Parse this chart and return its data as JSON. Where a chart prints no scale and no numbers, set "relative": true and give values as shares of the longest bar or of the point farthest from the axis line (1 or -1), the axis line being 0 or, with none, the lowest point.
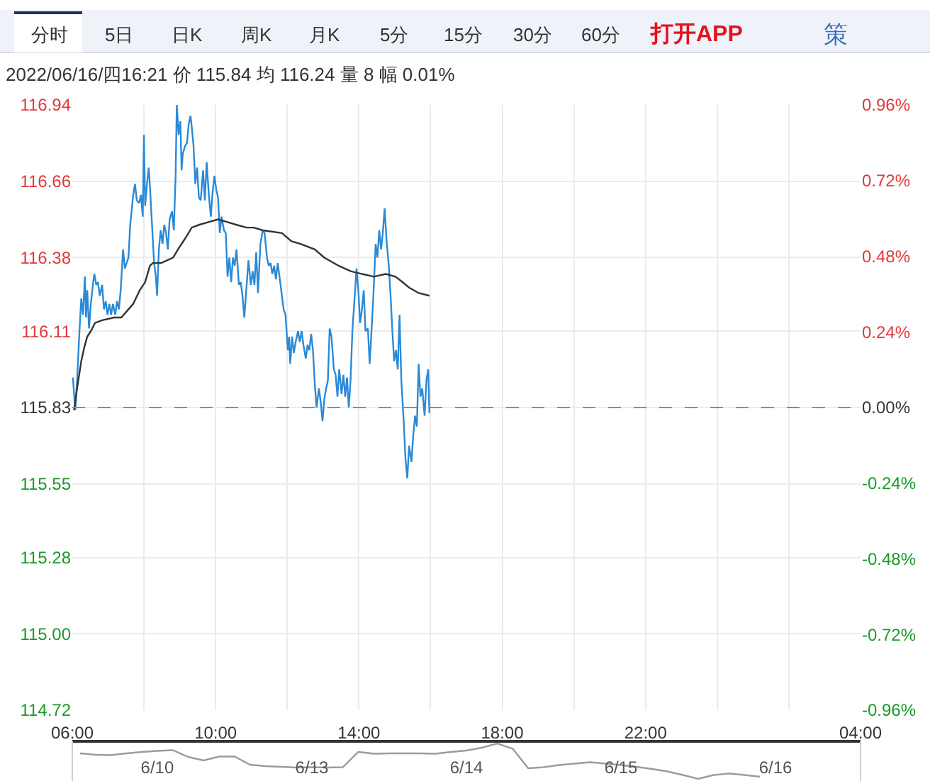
{
  "chart_data": [
    {
      "type": "other",
      "annotations": [
        "分时",
        "5日",
        "日K",
        "周K",
        "月K",
        "5分",
        "15分",
        "30分",
        "60分",
        "打开APP",
        "策"
      ]
    },
    {
      "type": "line",
      "title": "2022/06/16/四16:21 价 115.84 均 116.24 量 8 幅 0.01%",
      "xlim": [
        "2022-06-16T06:00",
        "2022-06-17T04:00"
      ],
      "xticks": [
        {
          "value": "2022-06-16T06:00",
          "label": "06:00"
        },
        {
          "value": "2022-06-16T08:00",
          "label": null
        },
        {
          "value": "2022-06-16T10:00",
          "label": "10:00"
        },
        {
          "value": "2022-06-16T12:00",
          "label": null
        },
        {
          "value": "2022-06-16T14:00",
          "label": "14:00"
        },
        {
          "value": "2022-06-16T16:00",
          "label": null
        },
        {
          "value": "2022-06-16T18:00",
          "label": "18:00"
        },
        {
          "value": "2022-06-16T20:00",
          "label": null
        },
        {
          "value": "2022-06-16T22:00",
          "label": "22:00"
        },
        {
          "value": "2022-06-17T00:00",
          "label": null
        },
        {
          "value": "2022-06-17T02:00",
          "label": null
        },
        {
          "value": "2022-06-17T04:00",
          "label": "04:00"
        }
      ],
      "ylim": [
        114.72,
        116.94
      ],
      "yticks": [
        116.94,
        116.66,
        116.38,
        116.11,
        115.83,
        115.55,
        115.28,
        {
          "value": 115,
          "label": "115.00"
        },
        114.72
      ],
      "y2lim": [
        -0.96,
        0.96
      ],
      "y2ticks": [
        {
          "value": 0.96,
          "label": "0.96%"
        },
        {
          "value": 0.72,
          "label": "0.72%"
        },
        {
          "value": 0.48,
          "label": "0.48%"
        },
        {
          "value": 0.24,
          "label": "0.24%"
        },
        {
          "value": 0,
          "label": "0.00%"
        },
        {
          "value": -0.24,
          "label": "-0.24%"
        },
        {
          "value": -0.48,
          "label": "-0.48%"
        },
        {
          "value": -0.72,
          "label": "-0.72%"
        },
        {
          "value": -0.96,
          "label": "-0.96%"
        }
      ],
      "grid": true,
      "ref_lines": [
        {
          "axis": "y",
          "value": 115.83,
          "color": "#8c8c8c",
          "line_style": "dashed"
        }
      ],
      "series": [
        {
          "color": "#2b8ad8",
          "x": [
            "2022-06-16T06:01",
            "2022-06-16T06:05",
            "2022-06-16T06:08",
            "2022-06-16T06:12",
            "2022-06-16T06:15",
            "2022-06-16T06:18",
            "2022-06-16T06:21",
            "2022-06-16T06:23",
            "2022-06-16T06:25",
            "2022-06-16T06:28",
            "2022-06-16T06:31",
            "2022-06-16T06:35",
            "2022-06-16T06:37",
            "2022-06-16T06:40",
            "2022-06-16T06:43",
            "2022-06-16T06:46",
            "2022-06-16T06:50",
            "2022-06-16T06:53",
            "2022-06-16T06:56",
            "2022-06-16T06:59",
            "2022-06-16T07:02",
            "2022-06-16T07:05",
            "2022-06-16T07:08",
            "2022-06-16T07:12",
            "2022-06-16T07:15",
            "2022-06-16T07:18",
            "2022-06-16T07:21",
            "2022-06-16T07:25",
            "2022-06-16T07:28",
            "2022-06-16T07:31",
            "2022-06-16T07:34",
            "2022-06-16T07:37",
            "2022-06-16T07:42",
            "2022-06-16T07:45",
            "2022-06-16T07:48",
            "2022-06-16T07:52",
            "2022-06-16T07:55",
            "2022-06-16T07:58",
            "2022-06-16T08:00",
            "2022-06-16T08:02",
            "2022-06-16T08:05",
            "2022-06-16T08:08",
            "2022-06-16T08:10",
            "2022-06-16T08:13",
            "2022-06-16T08:17",
            "2022-06-16T08:20",
            "2022-06-16T08:22",
            "2022-06-16T08:25",
            "2022-06-16T08:28",
            "2022-06-16T08:31",
            "2022-06-16T08:34",
            "2022-06-16T08:37",
            "2022-06-16T08:40",
            "2022-06-16T08:43",
            "2022-06-16T08:47",
            "2022-06-16T08:50",
            "2022-06-16T08:53",
            "2022-06-16T08:55",
            "2022-06-16T08:58",
            "2022-06-16T09:01",
            "2022-06-16T09:03",
            "2022-06-16T09:05",
            "2022-06-16T09:09",
            "2022-06-16T09:12",
            "2022-06-16T09:15",
            "2022-06-16T09:18",
            "2022-06-16T09:20",
            "2022-06-16T09:23",
            "2022-06-16T09:26",
            "2022-06-16T09:29",
            "2022-06-16T09:32",
            "2022-06-16T09:35",
            "2022-06-16T09:39",
            "2022-06-16T09:42",
            "2022-06-16T09:45",
            "2022-06-16T09:49",
            "2022-06-16T09:52",
            "2022-06-16T09:55",
            "2022-06-16T09:58",
            "2022-06-16T10:01",
            "2022-06-16T10:04",
            "2022-06-16T10:07",
            "2022-06-16T10:10",
            "2022-06-16T10:14",
            "2022-06-16T10:17",
            "2022-06-16T10:20",
            "2022-06-16T10:23",
            "2022-06-16T10:26",
            "2022-06-16T10:29",
            "2022-06-16T10:32",
            "2022-06-16T10:35",
            "2022-06-16T10:39",
            "2022-06-16T10:42",
            "2022-06-16T10:45",
            "2022-06-16T10:48",
            "2022-06-16T10:52",
            "2022-06-16T10:55",
            "2022-06-16T10:59",
            "2022-06-16T11:02",
            "2022-06-16T11:05",
            "2022-06-16T11:08",
            "2022-06-16T11:11",
            "2022-06-16T11:15",
            "2022-06-16T11:19",
            "2022-06-16T11:22",
            "2022-06-16T11:26",
            "2022-06-16T11:29",
            "2022-06-16T11:32",
            "2022-06-16T11:35",
            "2022-06-16T11:38",
            "2022-06-16T11:41",
            "2022-06-16T11:44",
            "2022-06-16T11:47",
            "2022-06-16T11:51",
            "2022-06-16T11:54",
            "2022-06-16T11:57",
            "2022-06-16T12:01",
            "2022-06-16T12:03",
            "2022-06-16T12:05",
            "2022-06-16T12:08",
            "2022-06-16T12:11",
            "2022-06-16T12:14",
            "2022-06-16T12:18",
            "2022-06-16T12:21",
            "2022-06-16T12:24",
            "2022-06-16T12:27",
            "2022-06-16T12:31",
            "2022-06-16T12:34",
            "2022-06-16T12:37",
            "2022-06-16T12:40",
            "2022-06-16T12:43",
            "2022-06-16T12:46",
            "2022-06-16T12:49",
            "2022-06-16T12:53",
            "2022-06-16T12:56",
            "2022-06-16T12:59",
            "2022-06-16T13:02",
            "2022-06-16T13:05",
            "2022-06-16T13:08",
            "2022-06-16T13:11",
            "2022-06-16T13:14",
            "2022-06-16T13:18",
            "2022-06-16T13:21",
            "2022-06-16T13:24",
            "2022-06-16T13:27",
            "2022-06-16T13:31",
            "2022-06-16T13:34",
            "2022-06-16T13:37",
            "2022-06-16T13:40",
            "2022-06-16T13:43",
            "2022-06-16T13:46",
            "2022-06-16T13:49",
            "2022-06-16T13:53",
            "2022-06-16T13:56",
            "2022-06-16T13:59",
            "2022-06-16T14:02",
            "2022-06-16T14:05",
            "2022-06-16T14:08",
            "2022-06-16T14:11",
            "2022-06-16T14:15",
            "2022-06-16T14:18",
            "2022-06-16T14:21",
            "2022-06-16T14:24",
            "2022-06-16T14:28",
            "2022-06-16T14:31",
            "2022-06-16T14:34",
            "2022-06-16T14:37",
            "2022-06-16T14:40",
            "2022-06-16T14:43",
            "2022-06-16T14:46",
            "2022-06-16T14:50",
            "2022-06-16T14:53",
            "2022-06-16T14:56",
            "2022-06-16T14:59",
            "2022-06-16T15:02",
            "2022-06-16T15:05",
            "2022-06-16T15:08",
            "2022-06-16T15:11",
            "2022-06-16T15:15",
            "2022-06-16T15:18",
            "2022-06-16T15:21",
            "2022-06-16T15:24",
            "2022-06-16T15:28",
            "2022-06-16T15:31",
            "2022-06-16T15:34",
            "2022-06-16T15:37",
            "2022-06-16T15:40",
            "2022-06-16T15:43",
            "2022-06-16T15:46",
            "2022-06-16T15:50",
            "2022-06-16T15:53",
            "2022-06-16T15:56",
            "2022-06-16T15:58"
          ],
          "values": [
            115.94,
            115.82,
            115.93,
            116.11,
            116.23,
            116.17,
            116.31,
            116.16,
            116.26,
            116.12,
            116.21,
            116.29,
            116.32,
            116.28,
            116.29,
            116.24,
            116.28,
            116.19,
            116.22,
            116.17,
            116.21,
            116.17,
            116.21,
            116.17,
            116.22,
            116.19,
            116.26,
            116.41,
            116.34,
            116.36,
            116.38,
            116.5,
            116.61,
            116.65,
            116.59,
            116.58,
            116.61,
            116.53,
            116.83,
            116.57,
            116.65,
            116.71,
            116.64,
            116.52,
            116.36,
            116.31,
            116.24,
            116.41,
            116.48,
            116.43,
            116.5,
            116.47,
            116.41,
            116.52,
            116.55,
            116.48,
            116.68,
            116.94,
            116.83,
            116.88,
            116.7,
            116.76,
            116.79,
            116.8,
            116.87,
            116.9,
            116.86,
            116.79,
            116.65,
            116.71,
            116.6,
            116.59,
            116.7,
            116.59,
            116.73,
            116.6,
            116.53,
            116.62,
            116.68,
            116.63,
            116.6,
            116.47,
            116.53,
            116.48,
            116.47,
            116.31,
            116.38,
            116.29,
            116.38,
            116.35,
            116.41,
            116.28,
            116.29,
            116.24,
            116.16,
            116.28,
            116.37,
            116.28,
            116.33,
            116.28,
            116.4,
            116.25,
            116.43,
            116.48,
            116.47,
            116.38,
            116.35,
            116.36,
            116.32,
            116.35,
            116.3,
            116.36,
            116.31,
            116.24,
            116.19,
            116.17,
            116.04,
            116.09,
            115.99,
            116.09,
            116.03,
            116.07,
            116.11,
            116.07,
            116.11,
            116.06,
            116.01,
            116.06,
            116.04,
            116.1,
            116.04,
            115.92,
            115.83,
            115.9,
            115.85,
            115.78,
            115.86,
            115.9,
            115.93,
            116.12,
            116.09,
            115.97,
            115.95,
            115.87,
            115.97,
            115.88,
            115.95,
            115.87,
            115.94,
            115.83,
            115.93,
            116.11,
            116.24,
            116.34,
            116.26,
            116.14,
            116.19,
            116.26,
            116.11,
            116.12,
            115.99,
            116.11,
            116.23,
            116.43,
            116.38,
            116.48,
            116.41,
            116.47,
            116.56,
            116.45,
            116.35,
            116.24,
            116.11,
            116.0,
            116.04,
            115.97,
            116.17,
            115.93,
            115.78,
            115.64,
            115.57,
            115.69,
            115.63,
            115.73,
            115.8,
            115.76,
            115.99,
            115.87,
            115.9,
            115.8,
            115.93,
            115.97,
            115.81
          ]
        },
        {
          "color": "#333333",
          "x": [
            "2022-06-16T06:03",
            "2022-06-16T06:08",
            "2022-06-16T06:15",
            "2022-06-16T06:20",
            "2022-06-16T06:25",
            "2022-06-16T06:31",
            "2022-06-16T06:38",
            "2022-06-16T06:50",
            "2022-06-16T07:10",
            "2022-06-16T07:22",
            "2022-06-16T07:30",
            "2022-06-16T07:42",
            "2022-06-16T07:53",
            "2022-06-16T08:02",
            "2022-06-16T08:10",
            "2022-06-16T08:15",
            "2022-06-16T08:29",
            "2022-06-16T08:49",
            "2022-06-16T08:57",
            "2022-06-16T09:09",
            "2022-06-16T09:20",
            "2022-06-16T09:32",
            "2022-06-16T09:48",
            "2022-06-16T10:04",
            "2022-06-16T10:20",
            "2022-06-16T10:35",
            "2022-06-16T10:52",
            "2022-06-16T11:04",
            "2022-06-16T11:19",
            "2022-06-16T11:51",
            "2022-06-16T12:07",
            "2022-06-16T12:22",
            "2022-06-16T12:46",
            "2022-06-16T13:02",
            "2022-06-16T13:26",
            "2022-06-16T13:46",
            "2022-06-16T14:05",
            "2022-06-16T14:25",
            "2022-06-16T14:45",
            "2022-06-16T15:01",
            "2022-06-16T15:13",
            "2022-06-16T15:24",
            "2022-06-16T15:40",
            "2022-06-16T15:58"
          ],
          "values": [
            115.82,
            115.9,
            116.0,
            116.05,
            116.09,
            116.11,
            116.14,
            116.15,
            116.16,
            116.16,
            116.18,
            116.21,
            116.26,
            116.29,
            116.35,
            116.36,
            116.36,
            116.38,
            116.41,
            116.45,
            116.49,
            116.5,
            116.51,
            116.52,
            116.51,
            116.5,
            116.49,
            116.49,
            116.48,
            116.47,
            116.44,
            116.43,
            116.41,
            116.38,
            116.35,
            116.33,
            116.32,
            116.31,
            116.32,
            116.31,
            116.29,
            116.27,
            116.25,
            116.24
          ]
        }
      ]
    },
    {
      "type": "line",
      "relative": true,
      "color": "#9c9c9c",
      "tick_labels": "x",
      "categories": [
        null,
        null,
        null,
        null,
        null,
        "6/10",
        null,
        null,
        null,
        null,
        null,
        null,
        null,
        null,
        null,
        "6/13",
        null,
        null,
        null,
        null,
        null,
        null,
        null,
        null,
        null,
        "6/14",
        null,
        null,
        null,
        null,
        null,
        null,
        null,
        null,
        null,
        "6/15",
        null,
        null,
        null,
        null,
        null,
        null,
        null,
        null,
        null,
        "6/16",
        null,
        null,
        null,
        null,
        null
      ],
      "values": [
        0.72,
        0.68,
        0.67,
        0.72,
        0.76,
        0.79,
        0.81,
        0.62,
        0.52,
        0.63,
        0.63,
        0.4,
        0.36,
        0.34,
        0.32,
        0.33,
        0.32,
        0.33,
        0.76,
        0.71,
        0.72,
        0.72,
        0.72,
        0.71,
        0.76,
        0.8,
        0.88,
        1.0,
        0.85,
        0.3,
        0.33,
        0.39,
        0.43,
        0.47,
        0.43,
        0.39,
        0.34,
        0.28,
        0.21,
        0.11,
        0.0,
        0.11,
        0.15,
        0.11,
        0.06,
        null,
        null,
        null,
        null,
        null,
        null
      ]
    }
  ]
}
